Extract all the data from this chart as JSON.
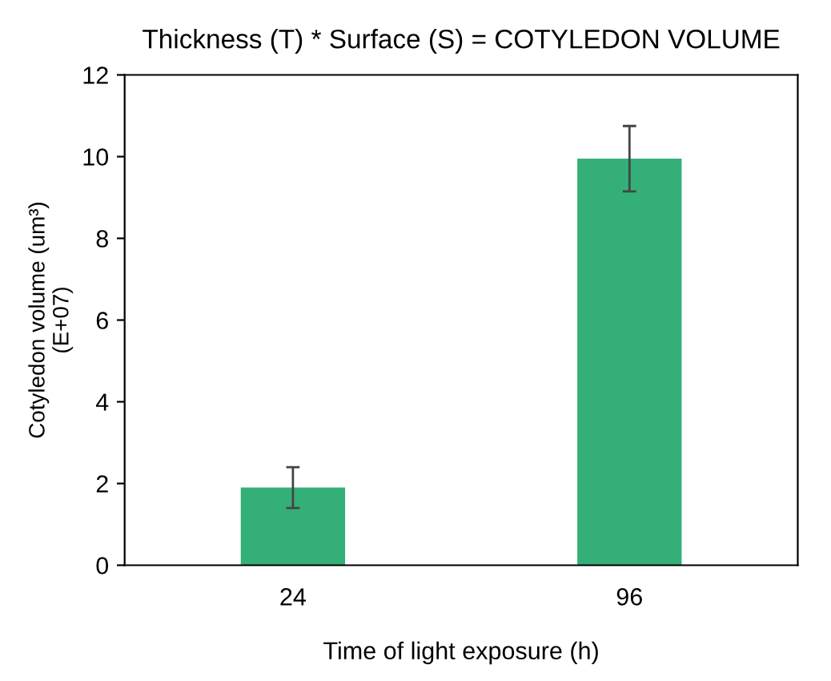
{
  "chart_data": {
    "type": "bar",
    "title": "Thickness (T) * Surface (S) = COTYLEDON VOLUME",
    "xlabel": "Time of light exposure (h)",
    "ylabel": "Cotyledon volume (um³)\n(E+07)",
    "categories": [
      "24",
      "96"
    ],
    "values": [
      1.9,
      9.95
    ],
    "errors": [
      0.5,
      0.8
    ],
    "color": "#34af78",
    "ylim": [
      0,
      12
    ],
    "yticks": [
      0,
      2,
      4,
      6,
      8,
      10,
      12
    ],
    "grid": false,
    "legend": false
  }
}
